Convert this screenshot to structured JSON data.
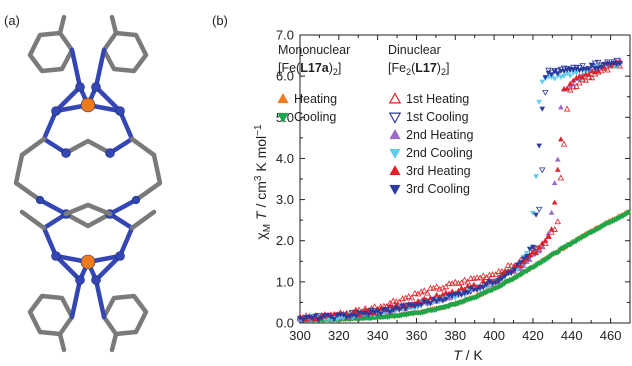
{
  "panels": {
    "a": "(a)",
    "b": "(b)"
  },
  "colors": {
    "bond": "#7a7a7a",
    "nitrogen": "#3446b4",
    "iron": "#ef7a1a",
    "mono_heating": "#f07a1f",
    "mono_cooling": "#1aa64a",
    "dinuclear_1st": "#e01f26",
    "dinuclear_1st_cool": "#2b3a9c",
    "dinuclear_2nd_heat": "#9b6bc8",
    "dinuclear_2nd_cool": "#5ecbef",
    "dinuclear_3rd_heat": "#e01f26",
    "dinuclear_3rd_cool": "#2b3a9c"
  },
  "molecule": {
    "icon": "molecular-structure-fe-complex"
  },
  "chart_data": {
    "type": "scatter",
    "xlabel": {
      "italic": "T",
      "rest": " / K"
    },
    "ylabel": {
      "chi": "χ",
      "sub_m": "M",
      "italic_t": "T",
      "unit": " / cm",
      "sup3": "3",
      "unit2": " K mol",
      "sup_neg": "−1"
    },
    "xlim": [
      300,
      470
    ],
    "ylim": [
      0.0,
      7.0
    ],
    "xticks": [
      "300",
      "320",
      "340",
      "360",
      "380",
      "400",
      "420",
      "440",
      "460"
    ],
    "yticks": [
      "0.0",
      "1.0",
      "2.0",
      "3.0",
      "4.0",
      "5.0",
      "6.0",
      "7.0"
    ],
    "grid": false,
    "legend": {
      "mono_header": "Mononuclear",
      "mono_formula": {
        "pre": "[Fe(",
        "bold": "L17a",
        "post": ")",
        "sub": "2",
        "end": "]"
      },
      "di_header": "Dinuclear",
      "di_formula": {
        "pre": "[Fe",
        "sub1": "2",
        "mid": "(",
        "bold": "L17",
        "post": ")",
        "sub2": "2",
        "end": "]"
      }
    },
    "series": [
      {
        "name": "Heating",
        "group": "mono",
        "marker": "triangle-up",
        "filled": true,
        "color": "#f07a1f",
        "transition": null,
        "x": [
          300,
          310,
          320,
          330,
          340,
          350,
          360,
          370,
          380,
          390,
          400,
          410,
          420,
          430,
          440,
          450,
          460,
          470
        ],
        "y": [
          0.08,
          0.09,
          0.1,
          0.12,
          0.15,
          0.19,
          0.25,
          0.34,
          0.47,
          0.64,
          0.85,
          1.1,
          1.38,
          1.67,
          1.96,
          2.23,
          2.48,
          2.72
        ]
      },
      {
        "name": "Cooling",
        "group": "mono",
        "marker": "triangle-down",
        "filled": true,
        "color": "#1aa64a",
        "transition": null,
        "x": [
          300,
          310,
          320,
          330,
          340,
          350,
          360,
          370,
          380,
          390,
          400,
          410,
          420,
          430,
          440,
          450,
          460,
          470
        ],
        "y": [
          0.07,
          0.08,
          0.09,
          0.11,
          0.14,
          0.18,
          0.24,
          0.33,
          0.46,
          0.62,
          0.83,
          1.08,
          1.36,
          1.65,
          1.94,
          2.21,
          2.46,
          2.7
        ]
      },
      {
        "name": "1st Heating",
        "group": "di",
        "marker": "triangle-up",
        "filled": false,
        "color": "#e01f26",
        "transition": [
          432,
          438
        ],
        "x": [
          300,
          320,
          340,
          360,
          380,
          400,
          415,
          425,
          432,
          435,
          438,
          445,
          455,
          465
        ],
        "y": [
          0.12,
          0.2,
          0.38,
          0.7,
          0.95,
          1.2,
          1.5,
          1.9,
          2.3,
          4.0,
          5.6,
          5.9,
          6.1,
          6.3
        ]
      },
      {
        "name": "1st Cooling",
        "group": "di",
        "marker": "triangle-down",
        "filled": false,
        "color": "#2b3a9c",
        "transition": [
          422,
          427
        ],
        "x": [
          300,
          320,
          340,
          360,
          380,
          400,
          415,
          422,
          425,
          427,
          435,
          445,
          455,
          465
        ],
        "y": [
          0.1,
          0.17,
          0.28,
          0.45,
          0.7,
          1.0,
          1.4,
          1.9,
          4.0,
          6.1,
          6.15,
          6.2,
          6.3,
          6.35
        ]
      },
      {
        "name": "2nd Heating",
        "group": "di",
        "marker": "triangle-up",
        "filled": true,
        "color": "#9b6bc8",
        "transition": [
          429,
          435
        ],
        "x": [
          300,
          320,
          340,
          360,
          380,
          400,
          415,
          424,
          429,
          432,
          435,
          445,
          455,
          465
        ],
        "y": [
          0.11,
          0.16,
          0.27,
          0.44,
          0.68,
          1.0,
          1.4,
          1.8,
          2.3,
          3.6,
          5.6,
          6.0,
          6.2,
          6.4
        ]
      },
      {
        "name": "2nd Cooling",
        "group": "di",
        "marker": "triangle-down",
        "filled": true,
        "color": "#5ecbef",
        "transition": [
          419,
          424
        ],
        "x": [
          300,
          320,
          340,
          360,
          380,
          400,
          412,
          419,
          422,
          424,
          432,
          445,
          455,
          465
        ],
        "y": [
          0.1,
          0.15,
          0.25,
          0.42,
          0.66,
          0.98,
          1.35,
          1.9,
          4.0,
          5.9,
          6.0,
          6.1,
          6.2,
          6.3
        ]
      },
      {
        "name": "3rd Heating",
        "group": "di",
        "marker": "triangle-up",
        "filled": true,
        "color": "#e01f26",
        "transition": [
          430,
          436
        ],
        "x": [
          300,
          320,
          340,
          360,
          380,
          400,
          415,
          424,
          430,
          433,
          436,
          445,
          455,
          465
        ],
        "y": [
          0.12,
          0.18,
          0.3,
          0.5,
          0.75,
          1.05,
          1.45,
          1.85,
          2.3,
          3.8,
          5.7,
          6.0,
          6.2,
          6.4
        ]
      },
      {
        "name": "3rd Cooling",
        "group": "di",
        "marker": "triangle-down",
        "filled": true,
        "color": "#2b3a9c",
        "transition": [
          421,
          426
        ],
        "x": [
          300,
          320,
          340,
          360,
          380,
          400,
          412,
          421,
          423,
          426,
          434,
          445,
          455,
          465
        ],
        "y": [
          0.1,
          0.16,
          0.26,
          0.43,
          0.68,
          1.0,
          1.38,
          1.9,
          3.9,
          6.0,
          6.1,
          6.2,
          6.25,
          6.35
        ]
      }
    ]
  }
}
